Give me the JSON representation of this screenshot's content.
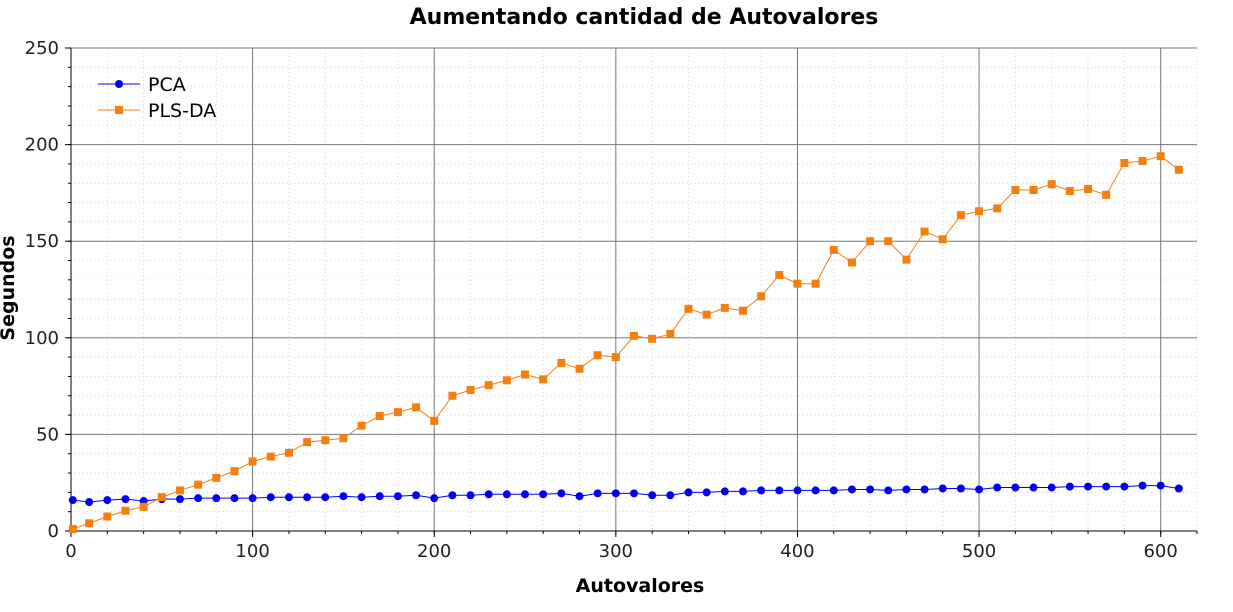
{
  "chart_data": {
    "type": "line",
    "title": "Aumentando cantidad de Autovalores",
    "xlabel": "Autovalores",
    "ylabel": "Segundos",
    "xlim": [
      0,
      620
    ],
    "ylim": [
      0,
      250
    ],
    "xticks": [
      0,
      100,
      200,
      300,
      400,
      500,
      600
    ],
    "yticks": [
      0,
      50,
      100,
      150,
      200,
      250
    ],
    "grid": true,
    "legend_position": "top-left",
    "x": [
      1,
      10,
      20,
      30,
      40,
      50,
      60,
      70,
      80,
      90,
      100,
      110,
      120,
      130,
      140,
      150,
      160,
      170,
      180,
      190,
      200,
      210,
      220,
      230,
      240,
      250,
      260,
      270,
      280,
      290,
      300,
      310,
      320,
      330,
      340,
      350,
      360,
      370,
      380,
      390,
      400,
      410,
      420,
      430,
      440,
      450,
      460,
      470,
      480,
      490,
      500,
      510,
      520,
      530,
      540,
      550,
      560,
      570,
      580,
      590,
      600,
      610
    ],
    "series": [
      {
        "name": "PCA",
        "color": "#0000ee",
        "marker": "circle",
        "values": [
          16,
          15,
          16,
          16.5,
          15.5,
          16.5,
          16.5,
          17,
          17,
          17,
          17,
          17.5,
          17.5,
          17.5,
          17.5,
          18,
          17.5,
          18,
          18,
          18.5,
          17,
          18.5,
          18.5,
          19,
          19,
          19,
          19,
          19.5,
          18,
          19.5,
          19.5,
          19.5,
          18.5,
          18.5,
          20,
          20,
          20.5,
          20.5,
          21,
          21,
          21,
          21,
          21,
          21.5,
          21.5,
          21,
          21.5,
          21.5,
          22,
          22,
          21.5,
          22.5,
          22.5,
          22.5,
          22.5,
          23,
          23,
          23,
          23,
          23.5,
          23.5,
          22
        ]
      },
      {
        "name": "PLS-DA",
        "color": "#f57f0e",
        "marker": "square",
        "values": [
          1,
          4,
          7.5,
          10.5,
          12.5,
          17.5,
          21,
          24,
          27.5,
          31,
          36,
          38.5,
          40.5,
          46,
          47,
          48,
          54.5,
          59.5,
          61.5,
          64,
          57,
          70,
          73,
          75.5,
          78,
          81,
          78.5,
          87,
          84,
          91,
          90,
          101,
          99.5,
          102,
          115,
          112,
          115.5,
          114,
          121.5,
          132.5,
          128,
          128,
          145.5,
          139,
          150,
          150,
          140.5,
          155,
          151,
          163.5,
          165.5,
          167,
          176.5,
          176.5,
          179.5,
          176,
          177,
          174,
          190.5,
          191.5,
          194,
          187
        ]
      }
    ]
  }
}
